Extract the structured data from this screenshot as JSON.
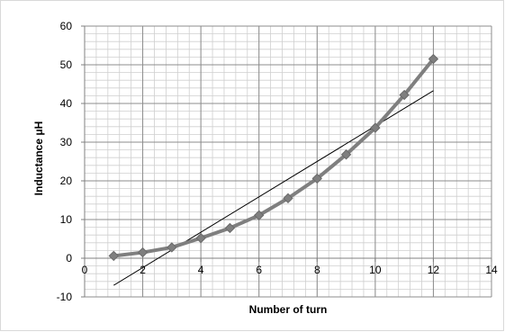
{
  "chart_data": {
    "type": "line",
    "xlabel": "Number of turn",
    "ylabel": "Inductance μH",
    "xlim": [
      0,
      14
    ],
    "ylim": [
      -10,
      60
    ],
    "x_ticks": [
      0,
      2,
      4,
      6,
      8,
      10,
      12,
      14
    ],
    "y_ticks": [
      -10,
      0,
      10,
      20,
      30,
      40,
      50,
      60
    ],
    "grid": true,
    "minor_grid": true,
    "legend": "none",
    "series": [
      {
        "type": "line-markers",
        "marker": "diamond",
        "color": "#7f7f7f",
        "x": [
          1,
          2,
          3,
          4,
          5,
          6,
          7,
          8,
          9,
          10,
          11,
          12
        ],
        "y": [
          0.6,
          1.5,
          2.8,
          5.2,
          7.8,
          11.1,
          15.5,
          20.6,
          26.8,
          33.7,
          42.2,
          51.5
        ]
      },
      {
        "type": "trendline-linear",
        "color": "#000000",
        "x": [
          1,
          12
        ],
        "y": [
          -7,
          43.3
        ]
      }
    ]
  }
}
